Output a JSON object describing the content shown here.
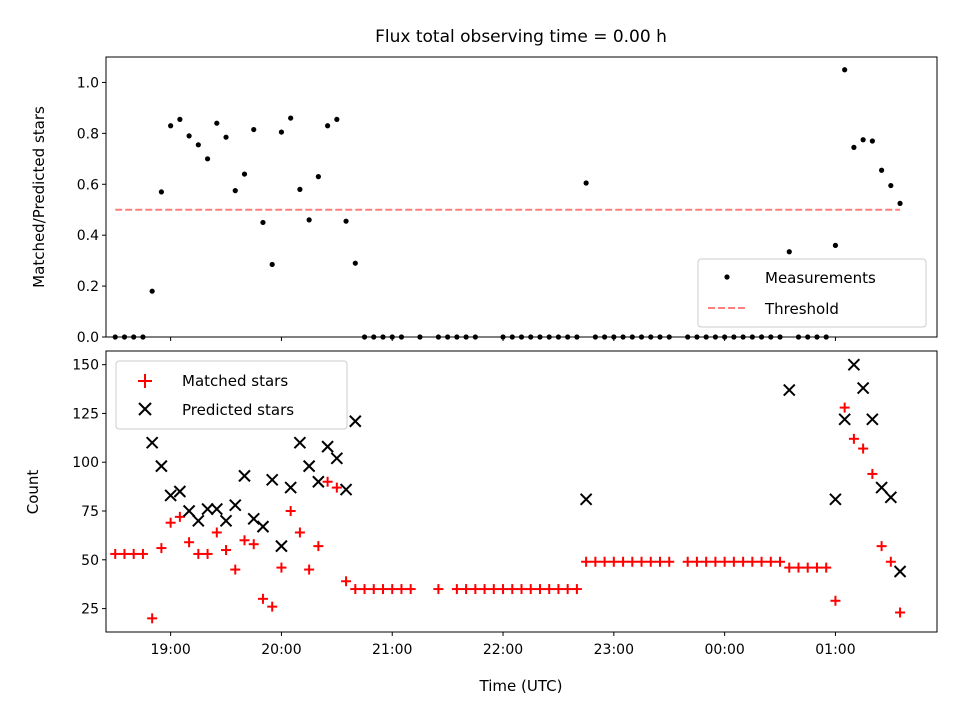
{
  "chart_data": [
    {
      "type": "scatter",
      "title": "Flux total observing time = 0.00 h",
      "xlabel": "",
      "ylabel": "Matched/Predicted stars",
      "xlim": [
        "18:25",
        "01:55"
      ],
      "ylim": [
        0,
        1.1
      ],
      "yticks": [
        "0.0",
        "0.2",
        "0.4",
        "0.6",
        "0.8",
        "1.0"
      ],
      "legend_position": "lower-right",
      "series": [
        {
          "name": "Measurements",
          "color": "#000000",
          "marker": "dot",
          "points": [
            {
              "x": "18:30",
              "y": 0
            },
            {
              "x": "18:35",
              "y": 0
            },
            {
              "x": "18:40",
              "y": 0
            },
            {
              "x": "18:45",
              "y": 0
            },
            {
              "x": "18:50",
              "y": 0.18
            },
            {
              "x": "18:55",
              "y": 0.57
            },
            {
              "x": "19:00",
              "y": 0.83
            },
            {
              "x": "19:05",
              "y": 0.855
            },
            {
              "x": "19:10",
              "y": 0.79
            },
            {
              "x": "19:15",
              "y": 0.755
            },
            {
              "x": "19:20",
              "y": 0.7
            },
            {
              "x": "19:25",
              "y": 0.84
            },
            {
              "x": "19:30",
              "y": 0.785
            },
            {
              "x": "19:35",
              "y": 0.575
            },
            {
              "x": "19:40",
              "y": 0.64
            },
            {
              "x": "19:45",
              "y": 0.815
            },
            {
              "x": "19:50",
              "y": 0.45
            },
            {
              "x": "19:55",
              "y": 0.285
            },
            {
              "x": "20:00",
              "y": 0.805
            },
            {
              "x": "20:05",
              "y": 0.86
            },
            {
              "x": "20:10",
              "y": 0.58
            },
            {
              "x": "20:15",
              "y": 0.46
            },
            {
              "x": "20:20",
              "y": 0.63
            },
            {
              "x": "20:25",
              "y": 0.83
            },
            {
              "x": "20:30",
              "y": 0.855
            },
            {
              "x": "20:35",
              "y": 0.455
            },
            {
              "x": "20:40",
              "y": 0.29
            },
            {
              "x": "20:45",
              "y": 0
            },
            {
              "x": "20:50",
              "y": 0
            },
            {
              "x": "20:55",
              "y": 0
            },
            {
              "x": "21:00",
              "y": 0
            },
            {
              "x": "21:05",
              "y": 0
            },
            {
              "x": "21:15",
              "y": 0
            },
            {
              "x": "21:25",
              "y": 0
            },
            {
              "x": "21:30",
              "y": 0
            },
            {
              "x": "21:35",
              "y": 0
            },
            {
              "x": "21:40",
              "y": 0
            },
            {
              "x": "21:45",
              "y": 0
            },
            {
              "x": "22:00",
              "y": 0
            },
            {
              "x": "22:05",
              "y": 0
            },
            {
              "x": "22:10",
              "y": 0
            },
            {
              "x": "22:15",
              "y": 0
            },
            {
              "x": "22:20",
              "y": 0
            },
            {
              "x": "22:25",
              "y": 0
            },
            {
              "x": "22:30",
              "y": 0
            },
            {
              "x": "22:35",
              "y": 0
            },
            {
              "x": "22:40",
              "y": 0
            },
            {
              "x": "22:45",
              "y": 0.605
            },
            {
              "x": "22:50",
              "y": 0
            },
            {
              "x": "22:55",
              "y": 0
            },
            {
              "x": "23:00",
              "y": 0
            },
            {
              "x": "23:05",
              "y": 0
            },
            {
              "x": "23:10",
              "y": 0
            },
            {
              "x": "23:15",
              "y": 0
            },
            {
              "x": "23:20",
              "y": 0
            },
            {
              "x": "23:25",
              "y": 0
            },
            {
              "x": "23:30",
              "y": 0
            },
            {
              "x": "23:40",
              "y": 0
            },
            {
              "x": "23:45",
              "y": 0
            },
            {
              "x": "23:50",
              "y": 0
            },
            {
              "x": "23:55",
              "y": 0
            },
            {
              "x": "00:00",
              "y": 0
            },
            {
              "x": "00:05",
              "y": 0
            },
            {
              "x": "00:10",
              "y": 0
            },
            {
              "x": "00:15",
              "y": 0
            },
            {
              "x": "00:20",
              "y": 0
            },
            {
              "x": "00:25",
              "y": 0
            },
            {
              "x": "00:30",
              "y": 0
            },
            {
              "x": "00:35",
              "y": 0.335
            },
            {
              "x": "00:40",
              "y": 0
            },
            {
              "x": "00:45",
              "y": 0
            },
            {
              "x": "00:50",
              "y": 0
            },
            {
              "x": "00:55",
              "y": 0
            },
            {
              "x": "01:00",
              "y": 0.36
            },
            {
              "x": "01:05",
              "y": 1.05
            },
            {
              "x": "01:10",
              "y": 0.745
            },
            {
              "x": "01:15",
              "y": 0.775
            },
            {
              "x": "01:20",
              "y": 0.77
            },
            {
              "x": "01:25",
              "y": 0.655
            },
            {
              "x": "01:30",
              "y": 0.595
            },
            {
              "x": "01:35",
              "y": 0.525
            }
          ]
        },
        {
          "name": "Threshold",
          "color": "#ff7f7f",
          "style": "dashed",
          "x": [
            "18:30",
            "01:35"
          ],
          "y": [
            0.5,
            0.5
          ]
        }
      ]
    },
    {
      "type": "scatter",
      "title": "",
      "xlabel": "Time (UTC)",
      "ylabel": "Count",
      "xlim": [
        "18:25",
        "01:55"
      ],
      "ylim": [
        13,
        157
      ],
      "yticks": [
        "25",
        "50",
        "75",
        "100",
        "125",
        "150"
      ],
      "xticks": [
        "19:00",
        "20:00",
        "21:00",
        "22:00",
        "23:00",
        "00:00",
        "01:00"
      ],
      "legend_position": "upper-left",
      "series": [
        {
          "name": "Matched stars",
          "color": "#ff0000",
          "marker": "plus",
          "points": [
            {
              "x": "18:30",
              "y": 53
            },
            {
              "x": "18:35",
              "y": 53
            },
            {
              "x": "18:40",
              "y": 53
            },
            {
              "x": "18:45",
              "y": 53
            },
            {
              "x": "18:50",
              "y": 20
            },
            {
              "x": "18:55",
              "y": 56
            },
            {
              "x": "19:00",
              "y": 69
            },
            {
              "x": "19:05",
              "y": 72
            },
            {
              "x": "19:10",
              "y": 59
            },
            {
              "x": "19:15",
              "y": 53
            },
            {
              "x": "19:20",
              "y": 53
            },
            {
              "x": "19:25",
              "y": 64
            },
            {
              "x": "19:30",
              "y": 55
            },
            {
              "x": "19:35",
              "y": 45
            },
            {
              "x": "19:40",
              "y": 60
            },
            {
              "x": "19:45",
              "y": 58
            },
            {
              "x": "19:50",
              "y": 30
            },
            {
              "x": "19:55",
              "y": 26
            },
            {
              "x": "20:00",
              "y": 46
            },
            {
              "x": "20:05",
              "y": 75
            },
            {
              "x": "20:10",
              "y": 64
            },
            {
              "x": "20:15",
              "y": 45
            },
            {
              "x": "20:20",
              "y": 57
            },
            {
              "x": "20:25",
              "y": 90
            },
            {
              "x": "20:30",
              "y": 87
            },
            {
              "x": "20:35",
              "y": 39
            },
            {
              "x": "20:40",
              "y": 35
            },
            {
              "x": "20:45",
              "y": 35
            },
            {
              "x": "20:50",
              "y": 35
            },
            {
              "x": "20:55",
              "y": 35
            },
            {
              "x": "21:00",
              "y": 35
            },
            {
              "x": "21:05",
              "y": 35
            },
            {
              "x": "21:10",
              "y": 35
            },
            {
              "x": "21:25",
              "y": 35
            },
            {
              "x": "21:35",
              "y": 35
            },
            {
              "x": "21:40",
              "y": 35
            },
            {
              "x": "21:45",
              "y": 35
            },
            {
              "x": "21:50",
              "y": 35
            },
            {
              "x": "21:55",
              "y": 35
            },
            {
              "x": "22:00",
              "y": 35
            },
            {
              "x": "22:05",
              "y": 35
            },
            {
              "x": "22:10",
              "y": 35
            },
            {
              "x": "22:15",
              "y": 35
            },
            {
              "x": "22:20",
              "y": 35
            },
            {
              "x": "22:25",
              "y": 35
            },
            {
              "x": "22:30",
              "y": 35
            },
            {
              "x": "22:35",
              "y": 35
            },
            {
              "x": "22:40",
              "y": 35
            },
            {
              "x": "22:45",
              "y": 49
            },
            {
              "x": "22:50",
              "y": 49
            },
            {
              "x": "22:55",
              "y": 49
            },
            {
              "x": "23:00",
              "y": 49
            },
            {
              "x": "23:05",
              "y": 49
            },
            {
              "x": "23:10",
              "y": 49
            },
            {
              "x": "23:15",
              "y": 49
            },
            {
              "x": "23:20",
              "y": 49
            },
            {
              "x": "23:25",
              "y": 49
            },
            {
              "x": "23:30",
              "y": 49
            },
            {
              "x": "23:40",
              "y": 49
            },
            {
              "x": "23:45",
              "y": 49
            },
            {
              "x": "23:50",
              "y": 49
            },
            {
              "x": "23:55",
              "y": 49
            },
            {
              "x": "00:00",
              "y": 49
            },
            {
              "x": "00:05",
              "y": 49
            },
            {
              "x": "00:10",
              "y": 49
            },
            {
              "x": "00:15",
              "y": 49
            },
            {
              "x": "00:20",
              "y": 49
            },
            {
              "x": "00:25",
              "y": 49
            },
            {
              "x": "00:30",
              "y": 49
            },
            {
              "x": "00:35",
              "y": 46
            },
            {
              "x": "00:40",
              "y": 46
            },
            {
              "x": "00:45",
              "y": 46
            },
            {
              "x": "00:50",
              "y": 46
            },
            {
              "x": "00:55",
              "y": 46
            },
            {
              "x": "01:00",
              "y": 29
            },
            {
              "x": "01:05",
              "y": 128
            },
            {
              "x": "01:10",
              "y": 112
            },
            {
              "x": "01:15",
              "y": 107
            },
            {
              "x": "01:20",
              "y": 94
            },
            {
              "x": "01:25",
              "y": 57
            },
            {
              "x": "01:30",
              "y": 49
            },
            {
              "x": "01:35",
              "y": 23
            }
          ]
        },
        {
          "name": "Predicted stars",
          "color": "#000000",
          "marker": "x",
          "points": [
            {
              "x": "18:50",
              "y": 110
            },
            {
              "x": "18:55",
              "y": 98
            },
            {
              "x": "19:00",
              "y": 83
            },
            {
              "x": "19:05",
              "y": 85
            },
            {
              "x": "19:10",
              "y": 75
            },
            {
              "x": "19:15",
              "y": 70
            },
            {
              "x": "19:20",
              "y": 76
            },
            {
              "x": "19:25",
              "y": 76
            },
            {
              "x": "19:30",
              "y": 70
            },
            {
              "x": "19:35",
              "y": 78
            },
            {
              "x": "19:40",
              "y": 93
            },
            {
              "x": "19:45",
              "y": 71
            },
            {
              "x": "19:50",
              "y": 67
            },
            {
              "x": "19:55",
              "y": 91
            },
            {
              "x": "20:00",
              "y": 57
            },
            {
              "x": "20:05",
              "y": 87
            },
            {
              "x": "20:10",
              "y": 110
            },
            {
              "x": "20:15",
              "y": 98
            },
            {
              "x": "20:20",
              "y": 90
            },
            {
              "x": "20:25",
              "y": 108
            },
            {
              "x": "20:30",
              "y": 102
            },
            {
              "x": "20:35",
              "y": 86
            },
            {
              "x": "20:40",
              "y": 121
            },
            {
              "x": "22:45",
              "y": 81
            },
            {
              "x": "00:35",
              "y": 137
            },
            {
              "x": "01:00",
              "y": 81
            },
            {
              "x": "01:05",
              "y": 122
            },
            {
              "x": "01:10",
              "y": 150
            },
            {
              "x": "01:15",
              "y": 138
            },
            {
              "x": "01:20",
              "y": 122
            },
            {
              "x": "01:25",
              "y": 87
            },
            {
              "x": "01:30",
              "y": 82
            },
            {
              "x": "01:35",
              "y": 44
            }
          ]
        }
      ]
    }
  ]
}
